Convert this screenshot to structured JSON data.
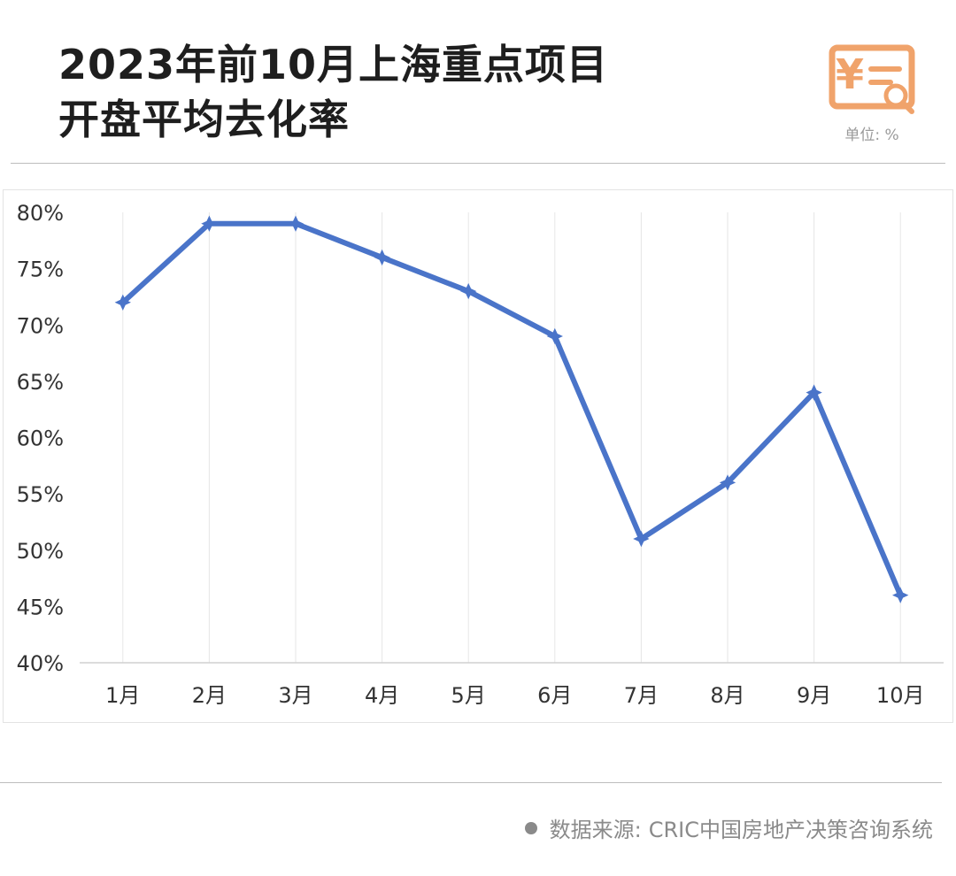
{
  "header": {
    "title_line1": "2023年前10月上海重点项目",
    "title_line2": "开盘平均去化率",
    "unit_label": "单位: %",
    "logo_icon": "yuan-document-magnifier-icon",
    "logo_color": "#F0A36B"
  },
  "footer": {
    "source_label": "数据来源:",
    "source_text": "CRIC中国房地产决策咨询系统"
  },
  "chart_data": {
    "type": "line",
    "categories": [
      "1月",
      "2月",
      "3月",
      "4月",
      "5月",
      "6月",
      "7月",
      "8月",
      "9月",
      "10月"
    ],
    "series": [
      {
        "values": [
          72,
          79,
          79,
          76,
          73,
          69,
          51,
          56,
          64,
          46
        ],
        "color": "#4A74C9"
      }
    ],
    "ylim": [
      40,
      80
    ],
    "yticks": [
      {
        "value": 40,
        "label": "40%"
      },
      {
        "value": 45,
        "label": "45%"
      },
      {
        "value": 50,
        "label": "50%"
      },
      {
        "value": 55,
        "label": "55%"
      },
      {
        "value": 60,
        "label": "60%"
      },
      {
        "value": 65,
        "label": "65%"
      },
      {
        "value": 70,
        "label": "70%"
      },
      {
        "value": 75,
        "label": "75%"
      },
      {
        "value": 80,
        "label": "80%"
      }
    ],
    "grid": "vertical",
    "legend": "none"
  }
}
